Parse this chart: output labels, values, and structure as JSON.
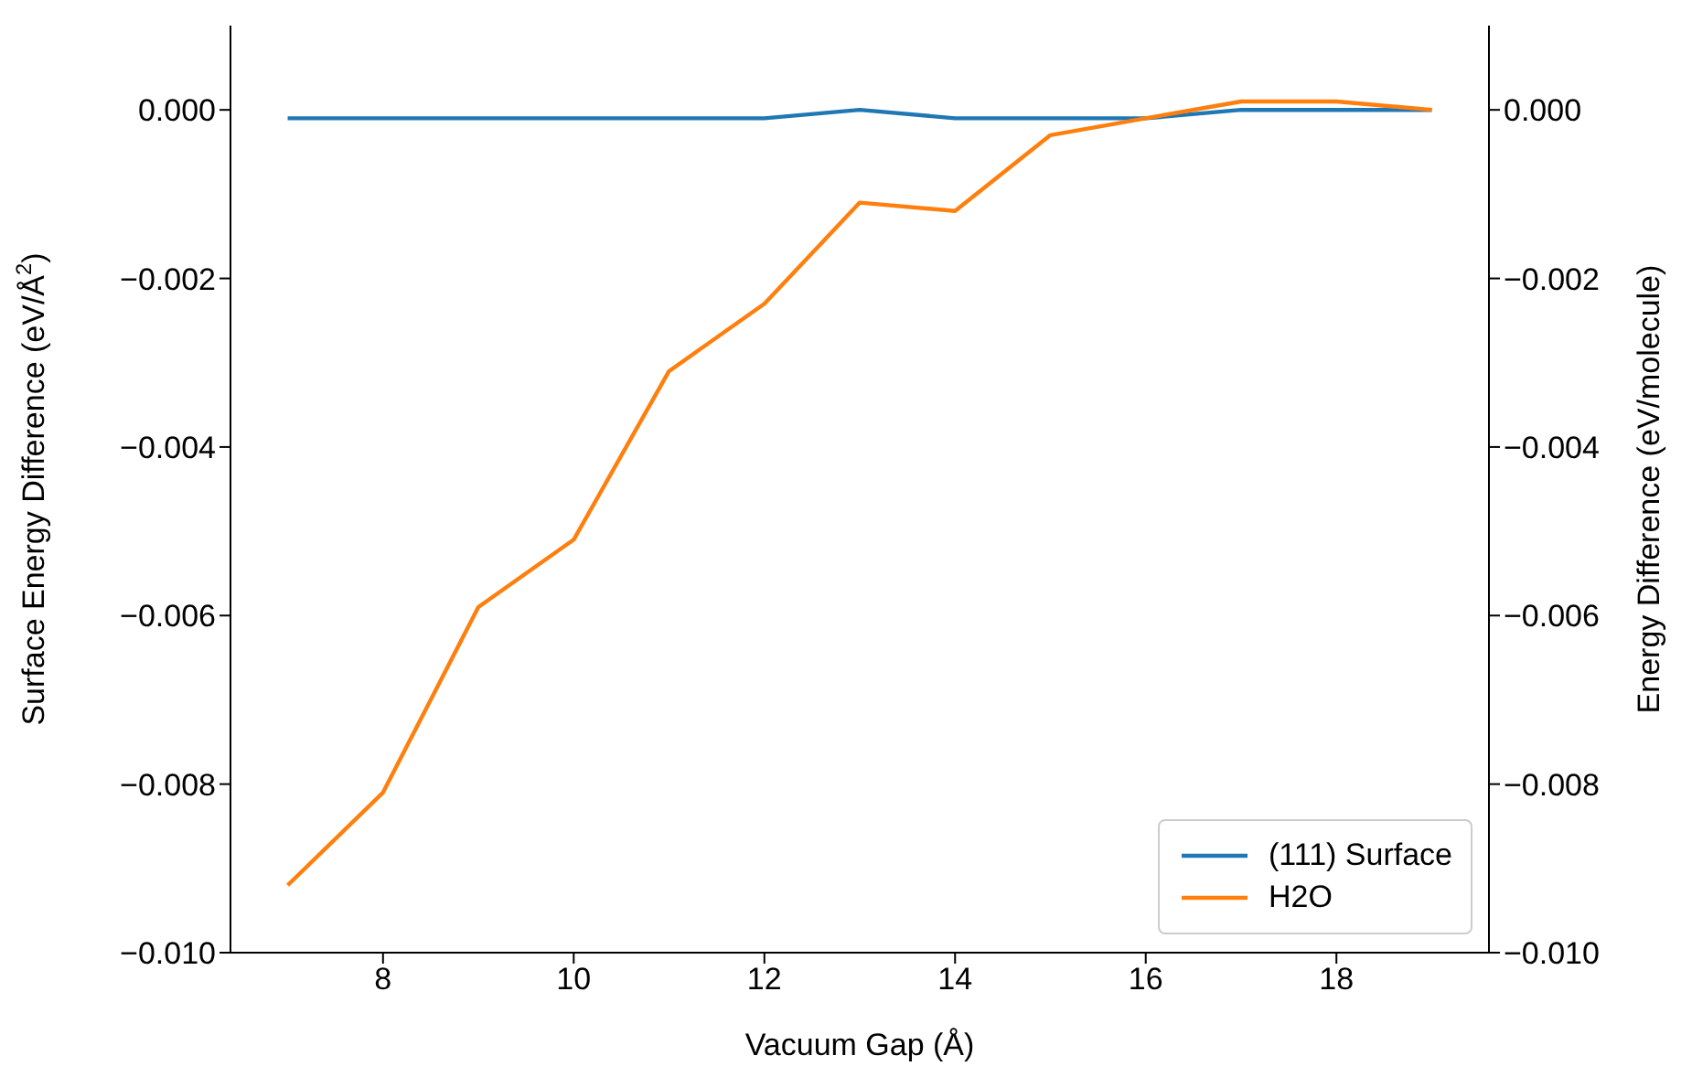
{
  "chart_data": {
    "type": "line",
    "xlabel": "Vacuum Gap (Å)",
    "ylabel": "Surface Energy Difference (eV/Å$^{2}$)",
    "y2label": "Energy Difference (eV/molecule)",
    "x": [
      7,
      8,
      9,
      10,
      11,
      12,
      13,
      14,
      15,
      16,
      17,
      18,
      19
    ],
    "series": [
      {
        "name": "(111) Surface",
        "color": "#1f77b4",
        "values": [
          -0.0001,
          -0.0001,
          -0.0001,
          -0.0001,
          -0.0001,
          -0.0001,
          0,
          -0.0001,
          -0.0001,
          -0.0001,
          0,
          0,
          0
        ]
      },
      {
        "name": "H2O",
        "color": "#ff7f0e",
        "axis": "y2",
        "values": [
          -0.0092,
          -0.0081,
          -0.0059,
          -0.0051,
          -0.0031,
          -0.0023,
          -0.0011,
          -0.0012,
          -0.0003,
          -0.0001,
          0.0001,
          0.0001,
          0
        ]
      }
    ],
    "xlim": [
      6.4,
      19.6
    ],
    "xticks": [
      8,
      10,
      12,
      14,
      16,
      18
    ],
    "ylim": [
      -0.01,
      0.001
    ],
    "yticks": [
      {
        "value": -0.01,
        "label": "−0.010"
      },
      {
        "value": -0.008,
        "label": "−0.008"
      },
      {
        "value": -0.006,
        "label": "−0.006"
      },
      {
        "value": -0.004,
        "label": "−0.004"
      },
      {
        "value": -0.002,
        "label": "−0.002"
      },
      {
        "value": 0,
        "label": "0.000"
      }
    ],
    "y2lim": [
      -0.01,
      0.001
    ],
    "y2ticks": [
      {
        "value": -0.01,
        "label": "−0.010"
      },
      {
        "value": -0.008,
        "label": "−0.008"
      },
      {
        "value": -0.006,
        "label": "−0.006"
      },
      {
        "value": -0.004,
        "label": "−0.004"
      },
      {
        "value": -0.002,
        "label": "−0.002"
      },
      {
        "value": 0,
        "label": "0.000"
      }
    ],
    "legend": "bottom right",
    "grid": false,
    "marker": "none",
    "line_style": "solid"
  }
}
